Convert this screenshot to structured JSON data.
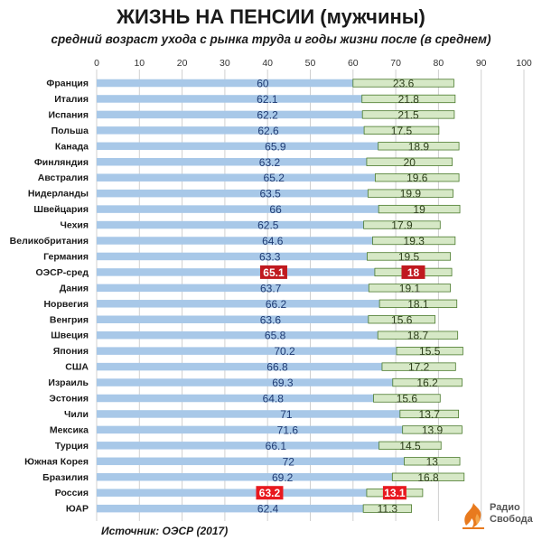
{
  "title": "ЖИЗНЬ НА ПЕНСИИ (мужчины)",
  "subtitle": "средний возраст ухода с рынка труда и годы жизни после (в среднем)",
  "source": "Источник: ОЭСР (2017)",
  "logo": {
    "icon": "radio-svoboda-flame-icon",
    "name": "Радио\nСвобода"
  },
  "chart_data": {
    "type": "bar",
    "orientation": "horizontal",
    "stacked": true,
    "xlim": [
      0,
      100
    ],
    "xticks": [
      0,
      10,
      20,
      30,
      40,
      50,
      60,
      70,
      80,
      90,
      100
    ],
    "grid": true,
    "categories": [
      "Франция",
      "Италия",
      "Испания",
      "Польша",
      "Канада",
      "Финляндия",
      "Австралия",
      "Нидерланды",
      "Швейцария",
      "Чехия",
      "Великобритания",
      "Германия",
      "ОЭСР-сред",
      "Дания",
      "Норвегия",
      "Венгрия",
      "Швеция",
      "Япония",
      "США",
      "Израиль",
      "Эстония",
      "Чили",
      "Мексика",
      "Турция",
      "Южная Корея",
      "Бразилия",
      "Россия",
      "ЮАР"
    ],
    "series": [
      {
        "values": [
          60,
          62.1,
          62.2,
          62.6,
          65.9,
          63.2,
          65.2,
          63.5,
          66,
          62.5,
          64.6,
          63.3,
          65.1,
          63.7,
          66.2,
          63.6,
          65.8,
          70.2,
          66.8,
          69.3,
          64.8,
          71,
          71.6,
          66.1,
          72,
          69.2,
          63.2,
          62.4
        ],
        "color": "#a8c8e8"
      },
      {
        "values": [
          23.6,
          21.8,
          21.5,
          17.5,
          18.9,
          20,
          19.6,
          19.9,
          19,
          17.9,
          19.3,
          19.5,
          18,
          19.1,
          18.1,
          15.6,
          18.7,
          15.5,
          17.2,
          16.2,
          15.6,
          13.7,
          13.9,
          14.5,
          13,
          16.8,
          13.1,
          11.3
        ],
        "color": "#d6e8c6"
      }
    ],
    "highlight": {
      "ОЭСР-сред": "#c0191f",
      "Россия": "#e8191f"
    },
    "colors": {
      "series1_label": "#1f3b73",
      "series2_label": "#2c3e1a",
      "series2_border": "#4a7a2c",
      "grid": "#d0d0d0"
    }
  }
}
